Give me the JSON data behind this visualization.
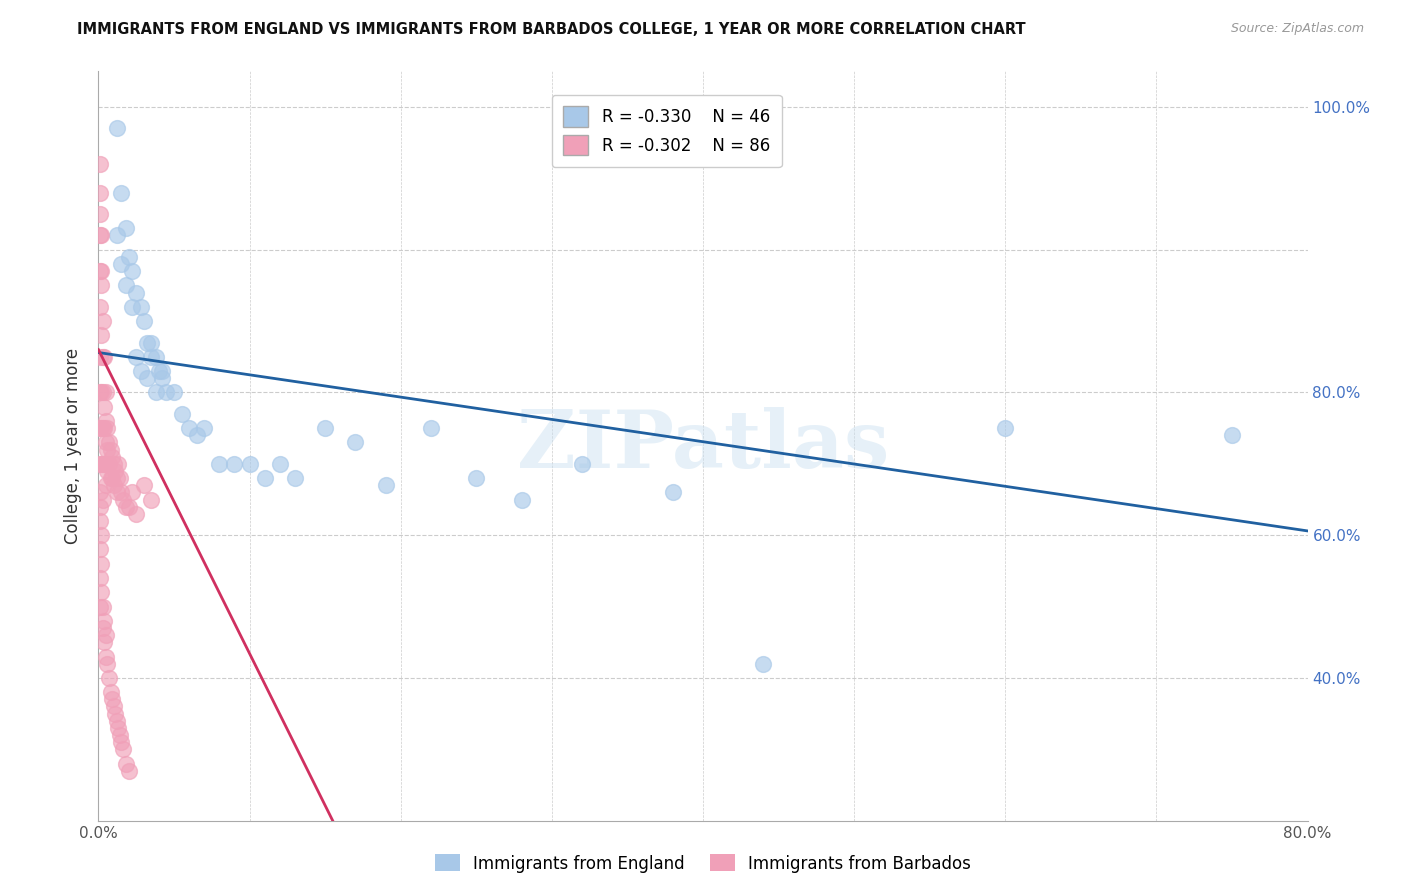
{
  "title": "IMMIGRANTS FROM ENGLAND VS IMMIGRANTS FROM BARBADOS COLLEGE, 1 YEAR OR MORE CORRELATION CHART",
  "source": "Source: ZipAtlas.com",
  "ylabel": "College, 1 year or more",
  "xlim": [
    0.0,
    0.8
  ],
  "ylim": [
    0.0,
    1.05
  ],
  "england_color": "#a8c8e8",
  "barbados_color": "#f0a0b8",
  "england_line_color": "#2060a0",
  "barbados_line_color": "#d03060",
  "england_R": -0.33,
  "england_N": 46,
  "barbados_R": -0.302,
  "barbados_N": 86,
  "watermark": "ZIPatlas",
  "legend_label_england": "Immigrants from England",
  "legend_label_barbados": "Immigrants from Barbados",
  "england_x": [
    0.012,
    0.015,
    0.018,
    0.02,
    0.022,
    0.025,
    0.028,
    0.03,
    0.032,
    0.035,
    0.038,
    0.04,
    0.042,
    0.045,
    0.05,
    0.055,
    0.06,
    0.065,
    0.07,
    0.08,
    0.09,
    0.1,
    0.11,
    0.12,
    0.13,
    0.15,
    0.17,
    0.19,
    0.22,
    0.25,
    0.28,
    0.32,
    0.38,
    0.44,
    0.6,
    0.75,
    0.012,
    0.015,
    0.018,
    0.022,
    0.025,
    0.028,
    0.032,
    0.035,
    0.038,
    0.042
  ],
  "england_y": [
    0.97,
    0.88,
    0.83,
    0.79,
    0.77,
    0.74,
    0.72,
    0.7,
    0.67,
    0.67,
    0.65,
    0.63,
    0.62,
    0.6,
    0.6,
    0.57,
    0.55,
    0.54,
    0.55,
    0.5,
    0.5,
    0.5,
    0.48,
    0.5,
    0.48,
    0.55,
    0.53,
    0.47,
    0.55,
    0.48,
    0.45,
    0.5,
    0.46,
    0.22,
    0.55,
    0.54,
    0.82,
    0.78,
    0.75,
    0.72,
    0.65,
    0.63,
    0.62,
    0.65,
    0.6,
    0.63
  ],
  "barbados_x": [
    0.001,
    0.001,
    0.001,
    0.001,
    0.001,
    0.001,
    0.001,
    0.001,
    0.002,
    0.002,
    0.002,
    0.002,
    0.002,
    0.003,
    0.003,
    0.003,
    0.003,
    0.003,
    0.004,
    0.004,
    0.004,
    0.005,
    0.005,
    0.005,
    0.005,
    0.006,
    0.006,
    0.006,
    0.007,
    0.007,
    0.008,
    0.008,
    0.009,
    0.009,
    0.01,
    0.01,
    0.011,
    0.012,
    0.012,
    0.013,
    0.014,
    0.015,
    0.016,
    0.018,
    0.02,
    0.022,
    0.025,
    0.03,
    0.035,
    0.001,
    0.001,
    0.001,
    0.001,
    0.001,
    0.001,
    0.002,
    0.002,
    0.002,
    0.003,
    0.003,
    0.004,
    0.004,
    0.005,
    0.005,
    0.006,
    0.007,
    0.008,
    0.009,
    0.01,
    0.011,
    0.012,
    0.013,
    0.014,
    0.015,
    0.016,
    0.018,
    0.02,
    0.001,
    0.001,
    0.002,
    0.002,
    0.003,
    0.004,
    0.005
  ],
  "barbados_y": [
    0.88,
    0.82,
    0.77,
    0.72,
    0.65,
    0.6,
    0.55,
    0.5,
    0.77,
    0.68,
    0.6,
    0.55,
    0.5,
    0.65,
    0.6,
    0.55,
    0.5,
    0.45,
    0.58,
    0.55,
    0.5,
    0.56,
    0.53,
    0.5,
    0.47,
    0.55,
    0.52,
    0.49,
    0.53,
    0.5,
    0.52,
    0.48,
    0.51,
    0.48,
    0.5,
    0.47,
    0.49,
    0.48,
    0.46,
    0.5,
    0.48,
    0.46,
    0.45,
    0.44,
    0.44,
    0.46,
    0.43,
    0.47,
    0.45,
    0.46,
    0.44,
    0.42,
    0.38,
    0.34,
    0.3,
    0.4,
    0.36,
    0.32,
    0.3,
    0.27,
    0.28,
    0.25,
    0.26,
    0.23,
    0.22,
    0.2,
    0.18,
    0.17,
    0.16,
    0.15,
    0.14,
    0.13,
    0.12,
    0.11,
    0.1,
    0.08,
    0.07,
    0.92,
    0.85,
    0.82,
    0.75,
    0.7,
    0.65,
    0.6
  ],
  "england_line_x": [
    0.0,
    0.8
  ],
  "england_line_y": [
    0.656,
    0.406
  ],
  "barbados_line_x": [
    0.0,
    0.155
  ],
  "barbados_line_y": [
    0.66,
    0.0
  ]
}
